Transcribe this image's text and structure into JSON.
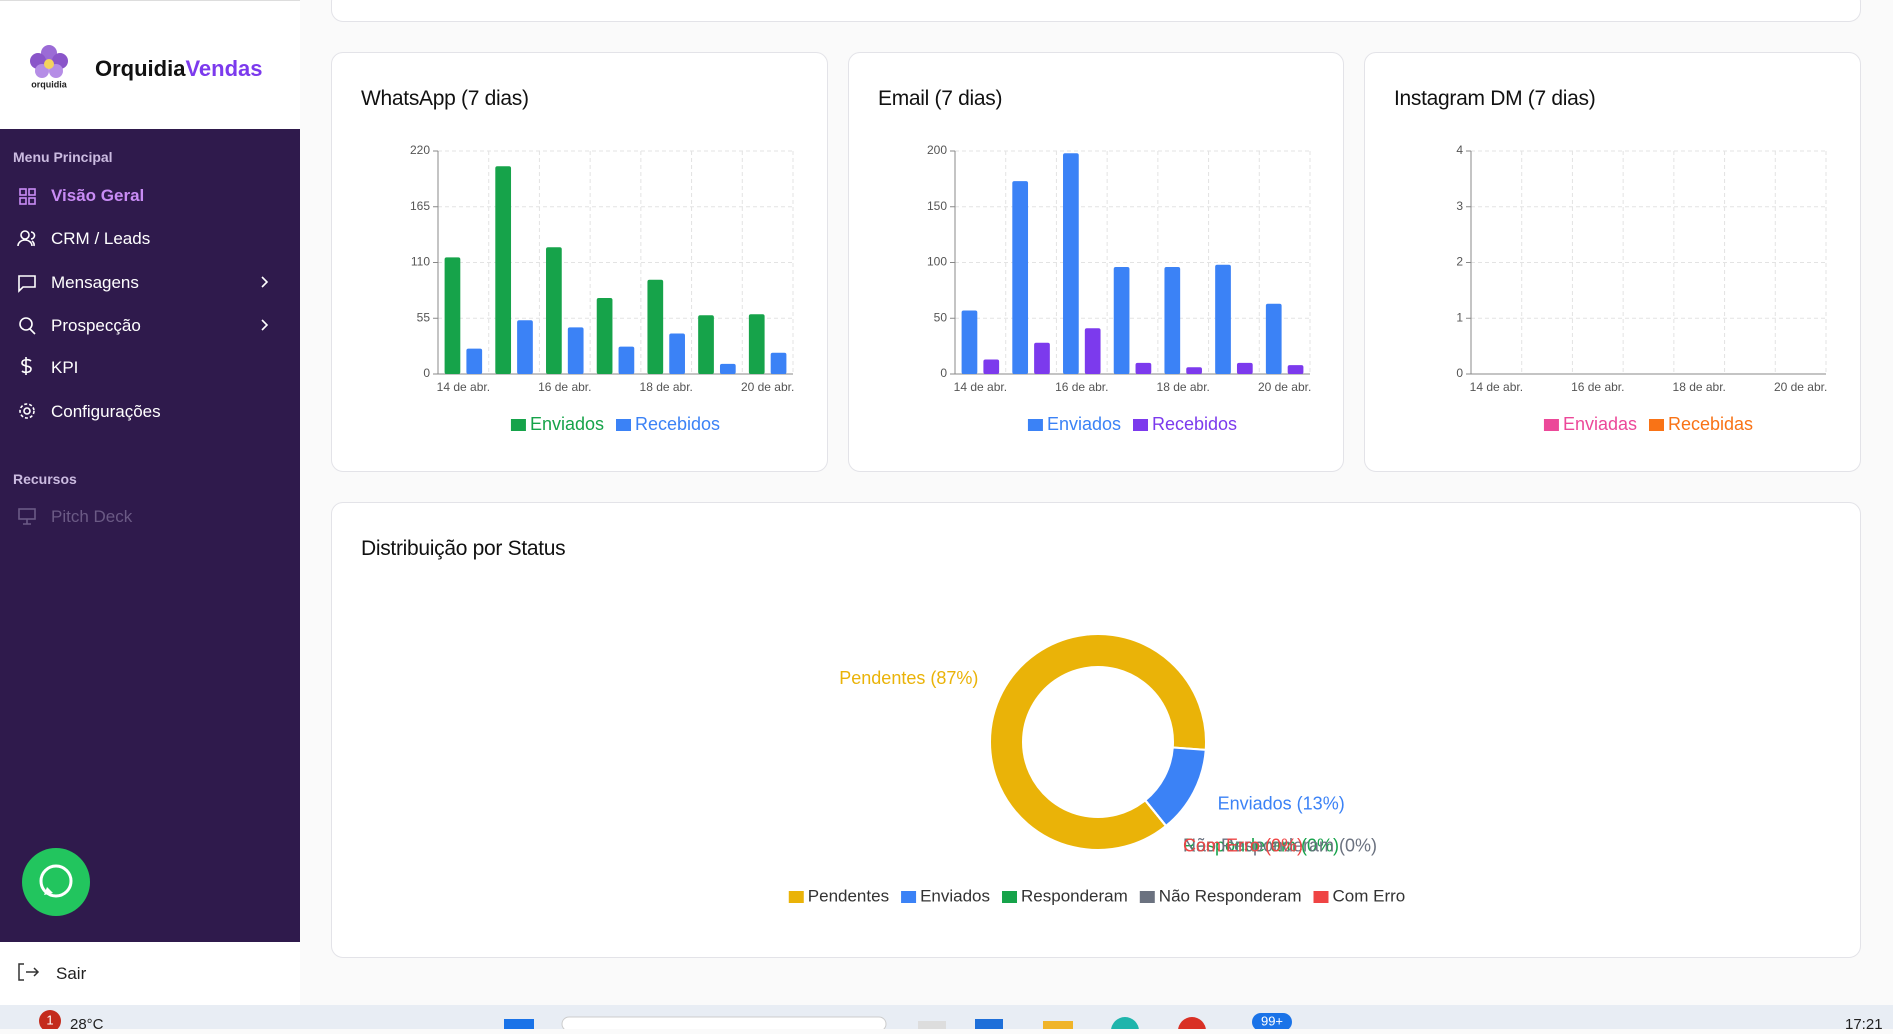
{
  "sidebar": {
    "brand": {
      "logo_text": "orquidia",
      "name_part1": "Orquidia",
      "name_part2": "Vendas"
    },
    "sections": [
      {
        "title": "Menu Principal",
        "items": [
          "Visão Geral",
          "CRM / Leads",
          "Mensagens",
          "Prospecção",
          "KPI",
          "Configurações"
        ]
      },
      {
        "title": "Recursos",
        "items": [
          "Pitch Deck"
        ]
      }
    ],
    "logout": "Sair"
  },
  "taskbar": {
    "notification_count": 1,
    "weather": "28°C",
    "badge": "99+",
    "time": "17:21"
  },
  "chart_data": [
    {
      "type": "bar",
      "title": "WhatsApp (7 dias)",
      "categories": [
        "14 de abr.",
        null,
        "16 de abr.",
        null,
        "18 de abr.",
        null,
        "20 de abr."
      ],
      "series": [
        {
          "name": "Enviados",
          "color": "#16a34a",
          "values": [
            115,
            205,
            125,
            75,
            93,
            58,
            59
          ]
        },
        {
          "name": "Recebidos",
          "color": "#3b82f6",
          "values": [
            25,
            53,
            46,
            27,
            40,
            10,
            21
          ]
        }
      ],
      "ylim": [
        0,
        220
      ],
      "yticks": [
        0,
        55,
        110,
        165,
        220
      ],
      "grid": true
    },
    {
      "type": "bar",
      "title": "Email (7 dias)",
      "categories": [
        "14 de abr.",
        null,
        "16 de abr.",
        null,
        "18 de abr.",
        null,
        "20 de abr."
      ],
      "series": [
        {
          "name": "Enviados",
          "color": "#3b82f6",
          "values": [
            57,
            173,
            198,
            96,
            96,
            98,
            63
          ]
        },
        {
          "name": "Recebidos",
          "color": "#7c3aed",
          "values": [
            13,
            28,
            41,
            10,
            6,
            10,
            8
          ]
        }
      ],
      "ylim": [
        0,
        200
      ],
      "yticks": [
        0,
        50,
        100,
        150,
        200
      ],
      "grid": true
    },
    {
      "type": "bar",
      "title": "Instagram DM (7 dias)",
      "categories": [
        "14 de abr.",
        null,
        "16 de abr.",
        null,
        "18 de abr.",
        null,
        "20 de abr."
      ],
      "series": [
        {
          "name": "Enviadas",
          "color": "#ec4899",
          "values": [
            0,
            0,
            0,
            0,
            0,
            0,
            0
          ]
        },
        {
          "name": "Recebidas",
          "color": "#f97316",
          "values": [
            0,
            0,
            0,
            0,
            0,
            0,
            0
          ]
        }
      ],
      "ylim": [
        0,
        4
      ],
      "yticks": [
        0,
        1,
        2,
        3,
        4
      ],
      "grid": true
    },
    {
      "type": "doughnut",
      "title": "Distribuição por Status",
      "categories": [
        "Pendentes",
        "Enviados",
        "Responderam",
        "Não Responderam",
        "Com Erro"
      ],
      "values": [
        87,
        13,
        0,
        0,
        0
      ],
      "value_labels": [
        "Pendentes (87%)",
        "Enviados (13%)",
        "Responderam (0%)",
        "Não Responderam (0%)",
        "Com Erro (0%)"
      ],
      "colors": [
        "#eab308",
        "#3b82f6",
        "#16a34a",
        "#6b7280",
        "#ef4444"
      ]
    }
  ]
}
